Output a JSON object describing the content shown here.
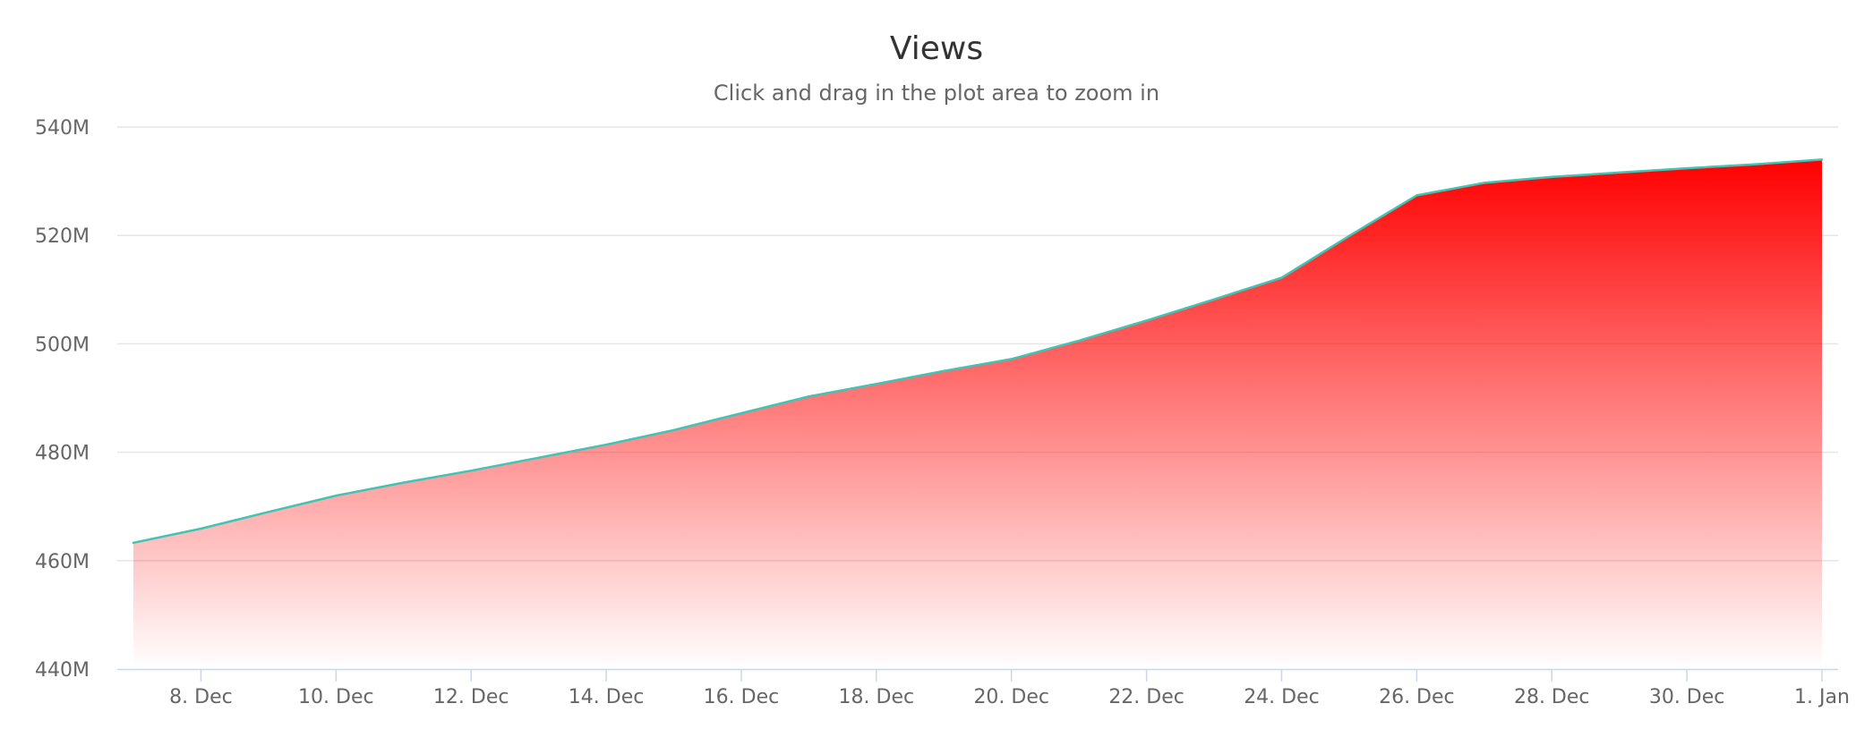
{
  "chart_data": {
    "type": "area",
    "title": "Views",
    "subtitle": "Click and drag in the plot area to zoom in",
    "xlabel": "",
    "ylabel": "",
    "x_axis_type": "date",
    "x_range": [
      "2023-12-07",
      "2024-01-01"
    ],
    "ylim": [
      440000000,
      540000000
    ],
    "y_ticks": [
      440000000,
      460000000,
      480000000,
      500000000,
      520000000,
      540000000
    ],
    "y_tick_labels": [
      "440M",
      "460M",
      "480M",
      "500M",
      "520M",
      "540M"
    ],
    "x_ticks": [
      "2023-12-08",
      "2023-12-10",
      "2023-12-12",
      "2023-12-14",
      "2023-12-16",
      "2023-12-18",
      "2023-12-20",
      "2023-12-22",
      "2023-12-24",
      "2023-12-26",
      "2023-12-28",
      "2023-12-30",
      "2024-01-01"
    ],
    "x_tick_labels": [
      "8. Dec",
      "10. Dec",
      "12. Dec",
      "14. Dec",
      "16. Dec",
      "18. Dec",
      "20. Dec",
      "22. Dec",
      "24. Dec",
      "26. Dec",
      "28. Dec",
      "30. Dec",
      "1. Jan"
    ],
    "grid": true,
    "legend": "none",
    "line_color": "#40c4b4",
    "fill_color": "#ff0000",
    "series": [
      {
        "x": [
          "2023-12-07",
          "2023-12-08",
          "2023-12-09",
          "2023-12-10",
          "2023-12-11",
          "2023-12-12",
          "2023-12-13",
          "2023-12-14",
          "2023-12-15",
          "2023-12-16",
          "2023-12-17",
          "2023-12-18",
          "2023-12-19",
          "2023-12-20",
          "2023-12-21",
          "2023-12-22",
          "2023-12-23",
          "2023-12-24",
          "2023-12-25",
          "2023-12-26",
          "2023-12-27",
          "2023-12-28",
          "2023-12-29",
          "2023-12-30",
          "2023-12-31",
          "2024-01-01"
        ],
        "values": [
          463300000,
          465900000,
          469000000,
          472000000,
          474400000,
          476600000,
          479000000,
          481400000,
          484100000,
          487200000,
          490300000,
          492600000,
          495000000,
          497200000,
          500600000,
          504300000,
          508200000,
          512200000,
          519900000,
          527400000,
          529700000,
          530800000,
          531600000,
          532400000,
          533100000,
          534000000
        ]
      }
    ]
  }
}
